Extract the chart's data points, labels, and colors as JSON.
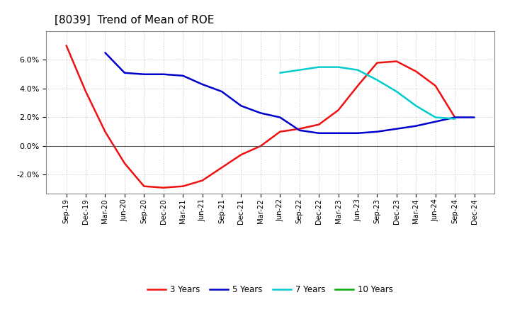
{
  "title": "[8039]  Trend of Mean of ROE",
  "title_fontsize": 11,
  "ylim": [
    -0.033,
    0.08
  ],
  "yticks": [
    -0.02,
    0.0,
    0.02,
    0.04,
    0.06
  ],
  "background_color": "#ffffff",
  "grid_color": "#b0b0b0",
  "x_labels": [
    "Sep-19",
    "Dec-19",
    "Mar-20",
    "Jun-20",
    "Sep-20",
    "Dec-20",
    "Mar-21",
    "Jun-21",
    "Sep-21",
    "Dec-21",
    "Mar-22",
    "Jun-22",
    "Sep-22",
    "Dec-22",
    "Mar-23",
    "Jun-23",
    "Sep-23",
    "Dec-23",
    "Mar-24",
    "Jun-24",
    "Sep-24",
    "Dec-24"
  ],
  "series": [
    {
      "name": "3 Years",
      "color": "#ee1111",
      "values": [
        0.07,
        0.038,
        0.01,
        -0.012,
        -0.028,
        -0.029,
        -0.028,
        -0.024,
        -0.015,
        -0.006,
        0.0,
        0.01,
        0.012,
        0.015,
        0.025,
        0.042,
        0.058,
        0.059,
        0.052,
        0.042,
        0.02,
        null
      ]
    },
    {
      "name": "5 Years",
      "color": "#0000cc",
      "values": [
        null,
        null,
        0.065,
        0.051,
        0.05,
        0.05,
        0.049,
        0.043,
        0.038,
        0.028,
        0.023,
        0.02,
        0.011,
        0.009,
        0.009,
        0.009,
        0.01,
        0.012,
        0.014,
        0.017,
        0.02,
        0.02
      ]
    },
    {
      "name": "7 Years",
      "color": "#00cccc",
      "values": [
        null,
        null,
        null,
        null,
        null,
        null,
        null,
        null,
        null,
        null,
        null,
        0.051,
        0.053,
        0.055,
        0.055,
        0.053,
        0.046,
        0.038,
        0.028,
        0.02,
        0.019,
        null
      ]
    },
    {
      "name": "10 Years",
      "color": "#00aa00",
      "values": [
        null,
        null,
        null,
        null,
        null,
        null,
        null,
        null,
        null,
        null,
        null,
        null,
        null,
        null,
        null,
        null,
        null,
        null,
        null,
        null,
        null,
        null
      ]
    }
  ]
}
